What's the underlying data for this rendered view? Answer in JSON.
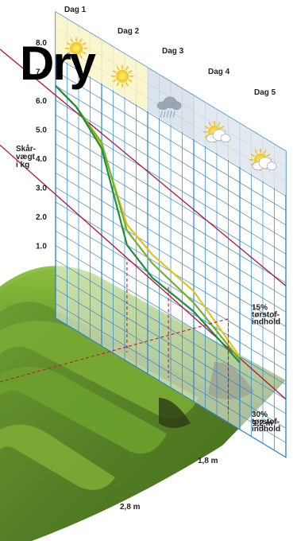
{
  "overlay_title": "Dry",
  "days": [
    "Dag 1",
    "Dag 2",
    "Dag 3",
    "Dag 4",
    "Dag 5"
  ],
  "weather_icons": [
    "sun-icon",
    "sun-icon",
    "rain-cloud-icon",
    "sun-behind-cloud-icon",
    "sun-behind-cloud-icon"
  ],
  "colors": {
    "grid": "#2f86c8",
    "threshold": "#b0123a",
    "series_yellow": "#e2c21c",
    "series_light_green": "#79b02a",
    "series_dark_green": "#1d8f3a",
    "field_green": "#5e8f2a",
    "drop_line": "#c0182f"
  },
  "chart_data": {
    "type": "line",
    "ylabel": "Skår-\nvægt\ni kg",
    "ylim": [
      0,
      7
    ],
    "yticks": [
      "1.0",
      "2.0",
      "3.0",
      "4.0",
      "5.0",
      "6.0",
      "7.0",
      "8.0"
    ],
    "ytick_values": [
      1,
      2,
      3,
      4,
      5,
      6,
      7,
      8
    ],
    "x_categories": [
      "Dag 1",
      "Dag 2",
      "Dag 3",
      "Dag 4",
      "Dag 5"
    ],
    "series": [
      {
        "x": [
          0.0,
          0.45,
          1.0,
          1.55,
          2.1,
          3.0,
          4.0
        ],
        "values": [
          6.5,
          6.2,
          5.4,
          3.2,
          2.7,
          2.3,
          1.0
        ],
        "color_key": "series_yellow"
      },
      {
        "x": [
          0.0,
          0.45,
          1.0,
          1.55,
          2.1,
          3.0,
          4.0
        ],
        "values": [
          6.5,
          6.2,
          5.5,
          3.0,
          2.4,
          1.9,
          0.9
        ],
        "color_key": "series_light_green"
      },
      {
        "x": [
          0.0,
          0.45,
          1.0,
          1.55,
          2.1,
          3.0,
          4.0
        ],
        "values": [
          6.5,
          6.2,
          5.3,
          2.5,
          1.9,
          1.6,
          0.8
        ],
        "color_key": "series_dark_green"
      }
    ],
    "thresholds": [
      {
        "label_lines": [
          "15%",
          "tørstof-",
          "indhold"
        ],
        "y_left": 6.6,
        "y_right": 4.4
      },
      {
        "label_lines": [
          "30%",
          "tørstof-",
          "indhold"
        ],
        "y_left": 2.7,
        "y_right": 0.5
      }
    ],
    "swath_widths": [
      "1,2 m",
      "1,8 m",
      "2,8 m"
    ]
  }
}
